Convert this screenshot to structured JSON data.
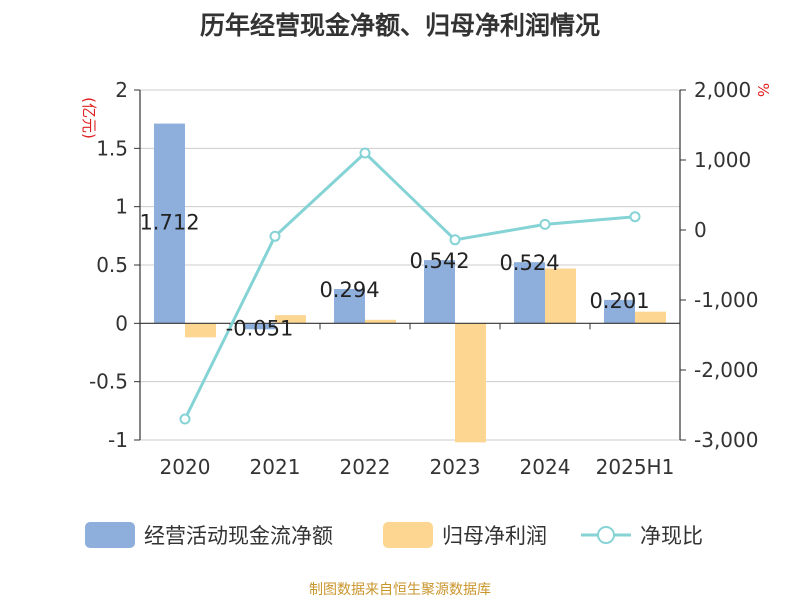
{
  "chart_data": {
    "type": "bar",
    "title": "历年经营现金净额、归母净利润情况",
    "categories": [
      "2020",
      "2021",
      "2022",
      "2023",
      "2024",
      "2025H1"
    ],
    "left_axis": {
      "label": "(亿元)",
      "ylim": [
        -1,
        2
      ],
      "ticks": [
        "2",
        "1.5",
        "1",
        "0.5",
        "0",
        "-0.5",
        "-1"
      ],
      "tick_values": [
        2,
        1.5,
        1,
        0.5,
        0,
        -0.5,
        -1
      ]
    },
    "right_axis": {
      "label": "%",
      "ylim": [
        -3000,
        2000
      ],
      "ticks": [
        "2,000",
        "1,000",
        "0",
        "-1,000",
        "-2,000",
        "-3,000"
      ],
      "tick_values": [
        2000,
        1000,
        0,
        -1000,
        -2000,
        -3000
      ]
    },
    "series": [
      {
        "name": "经营活动现金流净额",
        "type": "bar",
        "axis": "left",
        "color": "#8eaedb",
        "values": [
          1.712,
          -0.051,
          0.294,
          0.542,
          0.524,
          0.201
        ],
        "labels": [
          "1.712",
          "-0.051",
          "0.294",
          "0.542",
          "0.524",
          "0.201"
        ]
      },
      {
        "name": "归母净利润",
        "type": "bar",
        "axis": "left",
        "color": "#fdd691",
        "values": [
          -0.12,
          0.07,
          0.03,
          -1.02,
          0.47,
          0.1
        ]
      },
      {
        "name": "净现比",
        "type": "line",
        "axis": "right",
        "color": "#86d3d6",
        "values": [
          -2700,
          -90,
          1100,
          -140,
          80,
          190
        ]
      }
    ],
    "grid": true,
    "legend_position": "bottom"
  },
  "source_note": "制图数据来自恒生聚源数据库"
}
